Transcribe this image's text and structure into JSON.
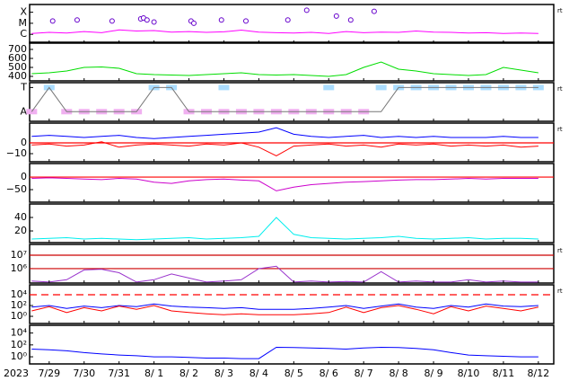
{
  "x_axis": {
    "year_label": "2023",
    "xlim": [
      -0.56,
      14.44
    ],
    "xticks": [
      {
        "value": 0,
        "label": "7/29"
      },
      {
        "value": 1,
        "label": "7/30"
      },
      {
        "value": 2,
        "label": "7/31"
      },
      {
        "value": 3,
        "label": "8/ 1"
      },
      {
        "value": 4,
        "label": "8/ 2"
      },
      {
        "value": 5,
        "label": "8/ 3"
      },
      {
        "value": 6,
        "label": "8/ 4"
      },
      {
        "value": 7,
        "label": "8/ 5"
      },
      {
        "value": 8,
        "label": "8/ 6"
      },
      {
        "value": 9,
        "label": "8/ 7"
      },
      {
        "value": 10,
        "label": "8/ 8"
      },
      {
        "value": 11,
        "label": "8/ 9"
      },
      {
        "value": 12,
        "label": "8/10"
      },
      {
        "value": 13,
        "label": "8/11"
      },
      {
        "value": 14,
        "label": "8/12"
      }
    ],
    "x": [
      -0.5,
      0,
      0.5,
      1,
      1.5,
      2,
      2.5,
      3,
      3.5,
      4,
      4.5,
      5,
      5.5,
      6,
      6.5,
      7,
      7.5,
      8,
      8.5,
      9,
      9.5,
      10,
      10.5,
      11,
      11.5,
      12,
      12.5,
      13,
      13.5,
      14
    ]
  },
  "chart_data": [
    {
      "type": "line",
      "log": true,
      "ylim": [
        1.6e-07,
        0.0005
      ],
      "right_label": "rt",
      "yticks": [
        {
          "value": 0.0001,
          "label": "X"
        },
        {
          "value": 1e-05,
          "label": "M"
        },
        {
          "value": 1e-06,
          "label": "C"
        }
      ],
      "series": [
        {
          "color": "#ff00ff",
          "values": [
            1.2e-06,
            1.5e-06,
            1.3e-06,
            1.8e-06,
            1.4e-06,
            2.5e-06,
            2e-06,
            2.2e-06,
            1.6e-06,
            1.8e-06,
            1.5e-06,
            1.7e-06,
            2.4e-06,
            1.6e-06,
            1.4e-06,
            1.3e-06,
            1.5e-06,
            1.2e-06,
            1.8e-06,
            1.4e-06,
            1.6e-06,
            1.5e-06,
            2e-06,
            1.6e-06,
            1.5e-06,
            1.3e-06,
            1.4e-06,
            1.2e-06,
            1.3e-06,
            1.2e-06
          ]
        }
      ],
      "markers": {
        "color": "#6600cc",
        "x": [
          0.1,
          0.8,
          1.8,
          2.62,
          2.7,
          2.8,
          3.0,
          4.06,
          4.14,
          4.93,
          5.63,
          6.83,
          7.37,
          8.22,
          8.63,
          9.3
        ],
        "values": [
          1.6e-05,
          2e-05,
          1.6e-05,
          2.5e-05,
          3e-05,
          2e-05,
          1.3e-05,
          1.6e-05,
          1e-05,
          2e-05,
          1.6e-05,
          2e-05,
          0.00015,
          4.5e-05,
          2e-05,
          0.00012
        ]
      }
    },
    {
      "type": "line",
      "log": false,
      "ylim": [
        350,
        780
      ],
      "yticks": [
        400,
        500,
        600,
        700
      ],
      "series": [
        {
          "color": "#00dd00",
          "values": [
            430,
            440,
            460,
            500,
            505,
            490,
            430,
            420,
            415,
            410,
            420,
            430,
            440,
            420,
            415,
            420,
            410,
            400,
            420,
            500,
            560,
            480,
            460,
            430,
            420,
            410,
            420,
            500,
            470,
            440
          ]
        }
      ]
    },
    {
      "type": "line",
      "log": false,
      "ylim": [
        -1.8,
        1.4
      ],
      "right_label": "rt",
      "yticks": [
        {
          "value": 1,
          "label": "T"
        },
        {
          "value": -1,
          "label": "A"
        }
      ],
      "series": [
        {
          "color": "#aaddff",
          "style": "points",
          "values": [
            null,
            1,
            null,
            null,
            null,
            null,
            null,
            1,
            1,
            null,
            null,
            1,
            null,
            null,
            null,
            null,
            null,
            1,
            null,
            null,
            1,
            1,
            1,
            1,
            1,
            1,
            1,
            1,
            1,
            1
          ]
        },
        {
          "color": "#f0b0f0",
          "style": "points",
          "values": [
            -1,
            null,
            -1,
            -1,
            -1,
            -1,
            -1,
            null,
            null,
            -1,
            -1,
            -1,
            -1,
            -1,
            -1,
            -1,
            -1,
            -1,
            -1,
            -1,
            null,
            null,
            null,
            null,
            null,
            null,
            null,
            null,
            null,
            null
          ]
        },
        {
          "color": "#777777",
          "values": [
            -1,
            1,
            -1,
            -1,
            -1,
            -1,
            -1,
            1,
            1,
            -1,
            -1,
            -1,
            -1,
            -1,
            -1,
            -1,
            -1,
            -1,
            -1,
            -1,
            -1,
            1,
            1,
            1,
            1,
            1,
            1,
            1,
            1,
            1
          ]
        }
      ]
    },
    {
      "type": "line",
      "log": false,
      "ylim": [
        -17.5,
        18.3
      ],
      "right_label": "rt",
      "yticks": [
        0,
        {
          "value": -10,
          "label": "−10"
        }
      ],
      "ref_lines": [
        {
          "value": 0,
          "color": "#ff0000",
          "dashed": false
        }
      ],
      "series": [
        {
          "color": "#0000ff",
          "values": [
            6,
            7,
            6,
            5,
            6,
            7,
            5,
            4,
            5,
            6,
            7,
            8,
            9,
            10,
            14,
            8,
            6,
            5,
            6,
            7,
            5,
            6,
            5,
            6,
            5,
            5,
            5,
            6,
            5,
            5
          ]
        },
        {
          "color": "#ff0000",
          "values": [
            -2,
            -1,
            -3,
            -2,
            1,
            -4,
            -2,
            -1,
            -2,
            -3,
            -1,
            -2,
            0,
            -4,
            -12,
            -3,
            -2,
            -1,
            -3,
            -2,
            -4,
            -1,
            -2,
            -1,
            -3,
            -2,
            -3,
            -2,
            -4,
            -3
          ]
        }
      ]
    },
    {
      "type": "line",
      "log": false,
      "ylim": [
        -100,
        54
      ],
      "yticks": [
        0,
        {
          "value": -50,
          "label": "−50"
        }
      ],
      "ref_lines": [
        {
          "value": 0,
          "color": "#ff0000",
          "dashed": false
        }
      ],
      "series": [
        {
          "color": "#cc00cc",
          "values": [
            -5,
            -3,
            -5,
            -8,
            -10,
            -5,
            -8,
            -20,
            -25,
            -15,
            -10,
            -8,
            -12,
            -15,
            -55,
            -40,
            -30,
            -25,
            -20,
            -18,
            -15,
            -12,
            -10,
            -10,
            -8,
            -5,
            -8,
            -5,
            -5,
            -5
          ]
        }
      ]
    },
    {
      "type": "line",
      "log": false,
      "ylim": [
        2.7,
        60
      ],
      "yticks": [
        40,
        20
      ],
      "series": [
        {
          "color": "#00eeee",
          "values": [
            8,
            9,
            10,
            8,
            9,
            8,
            7,
            8,
            9,
            10,
            8,
            9,
            10,
            12,
            40,
            15,
            10,
            9,
            8,
            9,
            10,
            12,
            9,
            8,
            9,
            10,
            8,
            9,
            9,
            8
          ]
        }
      ]
    },
    {
      "type": "line",
      "log": true,
      "ylim": [
        85000,
        63000000
      ],
      "right_label": "rt",
      "yticks": [
        {
          "value": 10000000,
          "label": "10⁷"
        },
        {
          "value": 1000000,
          "label": "10⁶"
        }
      ],
      "ref_lines": [
        {
          "value": 10000000,
          "color": "#cc0000",
          "dashed": false
        },
        {
          "value": 1000000,
          "color": "#cc0000",
          "dashed": false
        }
      ],
      "series": [
        {
          "color": "#9933cc",
          "values": [
            120000,
            100000,
            150000,
            800000,
            900000,
            500000,
            100000,
            150000,
            400000,
            200000,
            100000,
            120000,
            150000,
            1000000,
            1500000,
            100000,
            120000,
            100000,
            110000,
            100000,
            600000,
            100000,
            120000,
            100000,
            100000,
            150000,
            100000,
            120000,
            100000,
            100000
          ]
        }
      ]
    },
    {
      "type": "line",
      "log": true,
      "ylim": [
        0.047,
        680000
      ],
      "right_label": "rt",
      "yticks": [
        {
          "value": 10000,
          "label": "10⁴"
        },
        {
          "value": 100,
          "label": "10²"
        },
        {
          "value": 1,
          "label": "10⁰"
        }
      ],
      "ref_lines": [
        {
          "value": 10000,
          "color": "#ff0000",
          "dashed": true
        }
      ],
      "series": [
        {
          "color": "#0000ff",
          "values": [
            50,
            100,
            30,
            80,
            40,
            100,
            60,
            200,
            80,
            50,
            40,
            30,
            40,
            20,
            20,
            20,
            30,
            50,
            100,
            30,
            80,
            200,
            50,
            30,
            100,
            50,
            200,
            80,
            60,
            100
          ]
        },
        {
          "color": "#ff0000",
          "values": [
            10,
            60,
            5,
            40,
            10,
            80,
            20,
            100,
            10,
            5,
            3,
            2,
            3,
            2,
            2,
            2,
            3,
            5,
            50,
            5,
            40,
            100,
            20,
            3,
            60,
            10,
            80,
            30,
            10,
            50
          ]
        }
      ]
    },
    {
      "type": "line",
      "log": true,
      "ylim": [
        0.063,
        200000
      ],
      "yticks": [
        {
          "value": 10000,
          "label": "10⁴"
        },
        {
          "value": 100,
          "label": "10²"
        },
        {
          "value": 1,
          "label": "10⁰"
        }
      ],
      "series": [
        {
          "color": "#0000ff",
          "values": [
            20,
            15,
            10,
            5,
            3,
            2,
            1.5,
            1,
            1,
            0.8,
            0.6,
            0.6,
            0.5,
            0.5,
            40,
            35,
            30,
            25,
            20,
            30,
            40,
            35,
            25,
            15,
            5,
            2,
            1.5,
            1.2,
            1,
            1
          ]
        }
      ]
    }
  ]
}
